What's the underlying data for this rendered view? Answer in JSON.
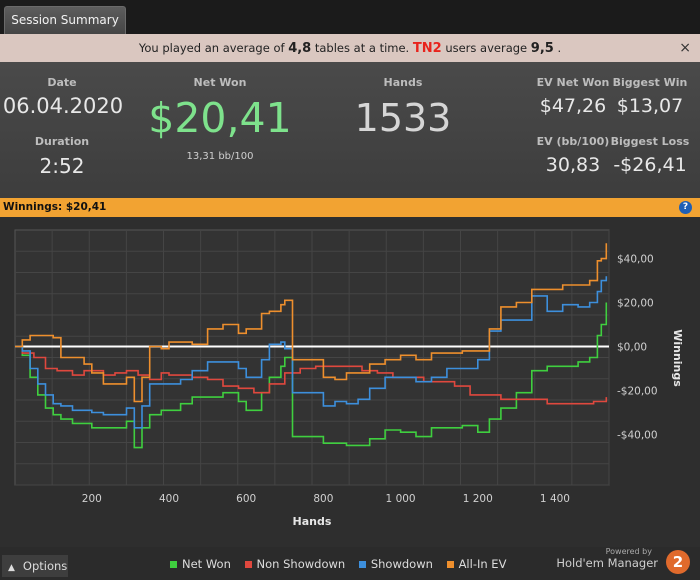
{
  "tab": {
    "label": "Session Summary"
  },
  "notice": {
    "prefix": "You played an average of",
    "tables": "4,8",
    "middle": "tables at a time.",
    "brand": "TN2",
    "users_text": "users average",
    "users_avg": "9,5",
    "end": ".",
    "close": "×"
  },
  "stats": {
    "date_label": "Date",
    "date": "06.04.2020",
    "duration_label": "Duration",
    "duration": "2:52",
    "netwon_label": "Net Won",
    "netwon": "$20,41",
    "bb100": "13,31 bb/100",
    "hands_label": "Hands",
    "hands": "1533",
    "ev_label": "EV Net Won",
    "ev": "$47,26",
    "bigwin_label": "Biggest Win",
    "bigwin": "$13,07",
    "evbb_label": "EV (bb/100)",
    "evbb": "30,83",
    "bigloss_label": "Biggest Loss",
    "bigloss": "-$26,41"
  },
  "winnings_bar": {
    "label": "Winnings:",
    "value": "$20,41",
    "help": "?"
  },
  "bottom": {
    "options_label": "Options",
    "powered_by": "Powered by",
    "brand_name": "Hold'em Manager",
    "brand_badge": "2"
  },
  "colors": {
    "net_won": "#3fcf3f",
    "non_showdown": "#e0483e",
    "showdown": "#3d8fdc",
    "all_in_ev": "#ee8f2d",
    "background": "#2e2e2e"
  },
  "chart_data": {
    "type": "line",
    "xlabel": "Hands",
    "ylabel": "Winnings",
    "xlim": [
      1,
      1540
    ],
    "ylim": [
      -63,
      53
    ],
    "xticks": [
      200,
      400,
      600,
      800,
      1000,
      1200,
      1400
    ],
    "xtick_labels": [
      "200",
      "400",
      "600",
      "800",
      "1 000",
      "1 200",
      "1 400"
    ],
    "yticks": [
      40,
      20,
      0,
      -20,
      -40
    ],
    "ytick_labels": [
      "$40,00",
      "$20,00",
      "$0,00",
      "-$20,00",
      "-$40,00"
    ],
    "grid": true,
    "zero_line": true,
    "legend_position": "bottom",
    "series": [
      {
        "name": "Net Won",
        "color": "#3fcf3f",
        "x": [
          1,
          20,
          40,
          60,
          80,
          100,
          120,
          150,
          180,
          200,
          230,
          260,
          290,
          310,
          330,
          350,
          380,
          400,
          430,
          460,
          500,
          540,
          580,
          600,
          640,
          660,
          690,
          700,
          720,
          760,
          800,
          830,
          860,
          890,
          920,
          960,
          1000,
          1040,
          1080,
          1120,
          1160,
          1200,
          1230,
          1260,
          1300,
          1340,
          1380,
          1420,
          1460,
          1490,
          1510,
          1520,
          1533
        ],
        "y": [
          0,
          -4,
          -14,
          -22,
          -28,
          -31,
          -33,
          -35,
          -35,
          -37,
          -37,
          -37,
          -34,
          -46,
          -37,
          -31,
          -29,
          -29,
          -26,
          -23,
          -23,
          -21,
          -25,
          -29,
          -21,
          -14,
          -9,
          -5,
          -41,
          -41,
          -44,
          -44,
          -45,
          -45,
          -42,
          -38,
          -39,
          -41,
          -37,
          -37,
          -36,
          -39,
          -33,
          -28,
          -21,
          -11,
          -9,
          -9,
          -7,
          -5,
          5,
          10,
          20
        ]
      },
      {
        "name": "Non Showdown",
        "color": "#e0483e",
        "x": [
          1,
          20,
          50,
          80,
          110,
          150,
          180,
          230,
          260,
          290,
          320,
          350,
          380,
          400,
          430,
          460,
          500,
          540,
          580,
          620,
          660,
          700,
          740,
          780,
          820,
          860,
          900,
          940,
          980,
          1020,
          1060,
          1100,
          1140,
          1180,
          1220,
          1260,
          1300,
          1340,
          1380,
          1420,
          1460,
          1500,
          1533
        ],
        "y": [
          0,
          -3,
          -5,
          -10,
          -11,
          -13,
          -11,
          -13,
          -12,
          -11,
          -13,
          -15,
          -12,
          -13,
          -13,
          -14,
          -15,
          -18,
          -19,
          -21,
          -17,
          -12,
          -10,
          -9,
          -9,
          -9,
          -11,
          -12,
          -14,
          -14,
          -16,
          -16,
          -18,
          -22,
          -22,
          -24,
          -24,
          -24,
          -26,
          -26,
          -26,
          -25,
          -23
        ]
      },
      {
        "name": "Showdown",
        "color": "#3d8fdc",
        "x": [
          1,
          20,
          40,
          60,
          80,
          100,
          120,
          150,
          180,
          200,
          230,
          260,
          290,
          310,
          330,
          350,
          380,
          400,
          430,
          460,
          500,
          540,
          580,
          600,
          640,
          660,
          690,
          700,
          720,
          760,
          800,
          830,
          860,
          890,
          920,
          960,
          1000,
          1040,
          1080,
          1120,
          1160,
          1200,
          1230,
          1260,
          1300,
          1340,
          1380,
          1420,
          1460,
          1490,
          1510,
          1520,
          1533
        ],
        "y": [
          0,
          -2,
          -10,
          -17,
          -22,
          -26,
          -27,
          -29,
          -29,
          -30,
          -31,
          -31,
          -28,
          -37,
          -27,
          -17,
          -17,
          -17,
          -15,
          -11,
          -7,
          -7,
          -10,
          -14,
          -6,
          1,
          2,
          -1,
          -21,
          -21,
          -27,
          -25,
          -26,
          -24,
          -19,
          -14,
          -14,
          -16,
          -14,
          -10,
          -10,
          -6,
          7,
          12,
          12,
          23,
          16,
          19,
          18,
          20,
          25,
          30,
          32
        ]
      },
      {
        "name": "All-In EV",
        "color": "#ee8f2d",
        "x": [
          1,
          20,
          40,
          60,
          80,
          100,
          120,
          150,
          180,
          200,
          230,
          260,
          290,
          310,
          330,
          350,
          380,
          400,
          430,
          460,
          500,
          540,
          580,
          600,
          640,
          660,
          690,
          700,
          720,
          760,
          800,
          830,
          860,
          890,
          920,
          960,
          1000,
          1040,
          1080,
          1120,
          1160,
          1200,
          1230,
          1260,
          1300,
          1340,
          1380,
          1420,
          1460,
          1490,
          1510,
          1520,
          1533
        ],
        "y": [
          0,
          3,
          5,
          5,
          5,
          4,
          -5,
          -5,
          -8,
          -12,
          -17,
          -17,
          -14,
          -25,
          -14,
          0,
          -1,
          2,
          2,
          1,
          8,
          10,
          6,
          8,
          15,
          16,
          19,
          21,
          -6,
          -6,
          -14,
          -15,
          -12,
          -12,
          -8,
          -6,
          -4,
          -6,
          -3,
          -3,
          -2,
          -2,
          8,
          18,
          20,
          26,
          26,
          28,
          28,
          30,
          39,
          40,
          47
        ]
      }
    ]
  }
}
